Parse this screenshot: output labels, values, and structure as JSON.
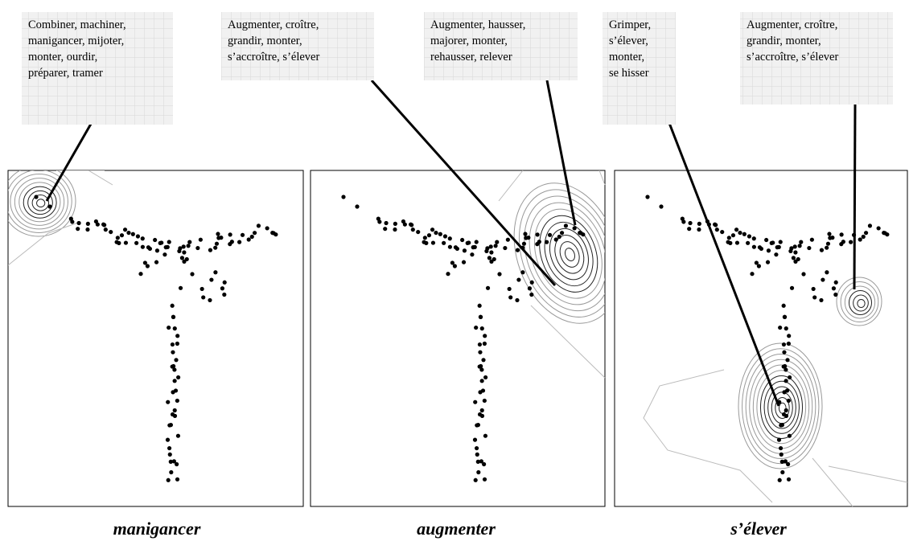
{
  "callouts": [
    {
      "lines": [
        "Combiner, machiner,",
        "manigancer, mijoter,",
        "monter, ourdir,",
        "préparer, tramer"
      ]
    },
    {
      "lines": [
        "Augmenter, croître,",
        "grandir, monter,",
        "s’accroître, s’élever"
      ]
    },
    {
      "lines": [
        "Augmenter, hausser,",
        "majorer, monter,",
        "rehausser, relever"
      ]
    },
    {
      "lines": [
        "Grimper,",
        "s’élever,",
        "monter,",
        "se hisser"
      ]
    },
    {
      "lines": [
        "Augmenter, croître,",
        "grandir, monter,",
        "s’accroître, s’élever"
      ]
    }
  ],
  "captions": [
    "manigancer",
    "augmenter",
    "s’élever"
  ]
}
